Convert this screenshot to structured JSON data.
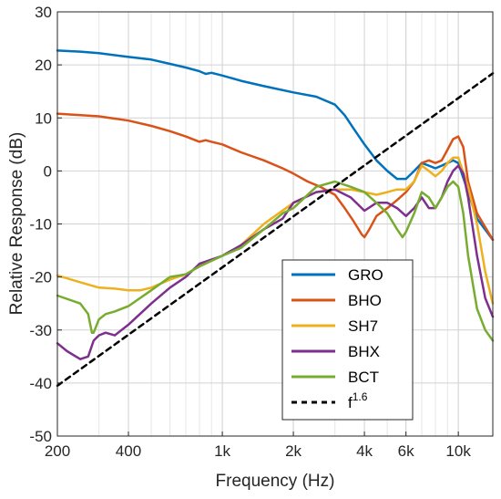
{
  "chart_data": {
    "type": "line",
    "xlabel": "Frequency (Hz)",
    "ylabel": "Relative Response (dB)",
    "xscale": "log",
    "xlim": [
      200,
      14000
    ],
    "ylim": [
      -50,
      30
    ],
    "grid": true,
    "legend_position": "bottom-right",
    "x_ticks": [
      {
        "value": 200,
        "label": "200"
      },
      {
        "value": 400,
        "label": "400"
      },
      {
        "value": 1000,
        "label": "1k"
      },
      {
        "value": 2000,
        "label": "2k"
      },
      {
        "value": 4000,
        "label": "4k"
      },
      {
        "value": 6000,
        "label": "6k"
      },
      {
        "value": 10000,
        "label": "10k"
      }
    ],
    "y_ticks": [
      30,
      20,
      10,
      0,
      -10,
      -20,
      -30,
      -40,
      -50
    ],
    "series": [
      {
        "name": "GRO",
        "color": "#0072BD",
        "x": [
          200,
          250,
          300,
          400,
          500,
          600,
          700,
          800,
          850,
          900,
          1000,
          1200,
          1500,
          2000,
          2500,
          3000,
          3300,
          3600,
          4000,
          4500,
          5000,
          5500,
          6000,
          6500,
          7000,
          7500,
          8000,
          8500,
          9000,
          9500,
          10000,
          11000,
          12000,
          14000
        ],
        "y": [
          22.7,
          22.5,
          22.2,
          21.5,
          21,
          20.2,
          19.5,
          18.8,
          18.3,
          18.5,
          18,
          17,
          16,
          14.8,
          14,
          12.5,
          10.5,
          8,
          5,
          2,
          0,
          -1.5,
          -1.5,
          0,
          1.5,
          1,
          0.5,
          1,
          1.5,
          2,
          1.5,
          -4,
          -9,
          -13
        ]
      },
      {
        "name": "BHO",
        "color": "#D95319",
        "x": [
          200,
          300,
          400,
          500,
          600,
          700,
          800,
          850,
          900,
          1000,
          1200,
          1500,
          1800,
          2000,
          2300,
          2600,
          3000,
          3300,
          3600,
          3900,
          4000,
          4200,
          4500,
          5000,
          5500,
          6000,
          6500,
          7000,
          7500,
          8000,
          8500,
          9000,
          9500,
          10000,
          10500,
          11000,
          12000,
          14000
        ],
        "y": [
          10.8,
          10.3,
          9.5,
          8.5,
          7.5,
          6.5,
          5.5,
          5.8,
          5.5,
          5,
          3.5,
          2,
          0.5,
          -0.5,
          -2,
          -3,
          -4.5,
          -7,
          -9.5,
          -12,
          -12.5,
          -11,
          -8.5,
          -7,
          -5.5,
          -4,
          -2,
          1.5,
          2,
          1.5,
          2,
          4,
          6,
          6.5,
          4.5,
          -2,
          -8,
          -13
        ]
      },
      {
        "name": "SH7",
        "color": "#EDB120",
        "x": [
          200,
          250,
          300,
          350,
          400,
          450,
          500,
          600,
          700,
          800,
          1000,
          1200,
          1500,
          2000,
          2500,
          3000,
          3500,
          4000,
          4500,
          5000,
          5500,
          6000,
          6500,
          7000,
          7500,
          8000,
          8500,
          9000,
          9500,
          10000,
          11000,
          12000,
          13000,
          14000
        ],
        "y": [
          -19.7,
          -21,
          -22,
          -22.2,
          -22.5,
          -22.5,
          -22,
          -20.5,
          -19.5,
          -18,
          -16,
          -14,
          -10,
          -6,
          -4,
          -3.5,
          -3.5,
          -4,
          -4.5,
          -4,
          -3.5,
          -3.5,
          -2,
          1,
          0,
          -1,
          0,
          1.5,
          2.5,
          2.5,
          -3,
          -10,
          -19,
          -25
        ]
      },
      {
        "name": "BHX",
        "color": "#7E2F8E",
        "x": [
          200,
          220,
          250,
          270,
          285,
          300,
          320,
          350,
          400,
          500,
          600,
          700,
          800,
          1000,
          1200,
          1500,
          1800,
          2000,
          2500,
          3000,
          3500,
          4000,
          4500,
          5000,
          5500,
          6000,
          6500,
          7000,
          7500,
          8000,
          8500,
          9000,
          9500,
          10000,
          10500,
          11000,
          12000,
          13000,
          14000
        ],
        "y": [
          -32.5,
          -34,
          -35.5,
          -35,
          -32,
          -31,
          -30.5,
          -31,
          -29,
          -25,
          -22,
          -20,
          -17.5,
          -16,
          -14,
          -11,
          -9,
          -6,
          -4,
          -3.5,
          -5,
          -7.5,
          -6,
          -6,
          -7,
          -8.5,
          -7,
          -5,
          -7,
          -7,
          -5,
          -2,
          0,
          1,
          -0.5,
          -5,
          -16,
          -24,
          -27.5
        ]
      },
      {
        "name": "BCT",
        "color": "#77AC30",
        "x": [
          200,
          250,
          270,
          280,
          285,
          300,
          320,
          350,
          400,
          500,
          600,
          700,
          800,
          1000,
          1200,
          1500,
          1800,
          2000,
          2500,
          3000,
          3500,
          4000,
          4500,
          5000,
          5500,
          5800,
          6000,
          6500,
          7000,
          7500,
          8000,
          8500,
          9000,
          9500,
          10000,
          10500,
          11000,
          12000,
          13000,
          14000
        ],
        "y": [
          -23.5,
          -25,
          -27,
          -30.5,
          -30.5,
          -28,
          -27,
          -26.5,
          -25.5,
          -22.5,
          -20,
          -19.5,
          -18,
          -16,
          -14.5,
          -11,
          -8,
          -7,
          -3,
          -2,
          -3,
          -4,
          -6,
          -8,
          -11,
          -12.5,
          -11.5,
          -8,
          -4,
          -5,
          -7,
          -5,
          -3,
          -2,
          -3,
          -8,
          -16,
          -26,
          -30,
          -32
        ]
      },
      {
        "name": "f^1.6",
        "name_base": "f",
        "name_exponent": "1.6",
        "color": "#000000",
        "dash": true,
        "x": [
          200,
          14000
        ],
        "y": [
          -40.5,
          18.4
        ]
      }
    ]
  }
}
